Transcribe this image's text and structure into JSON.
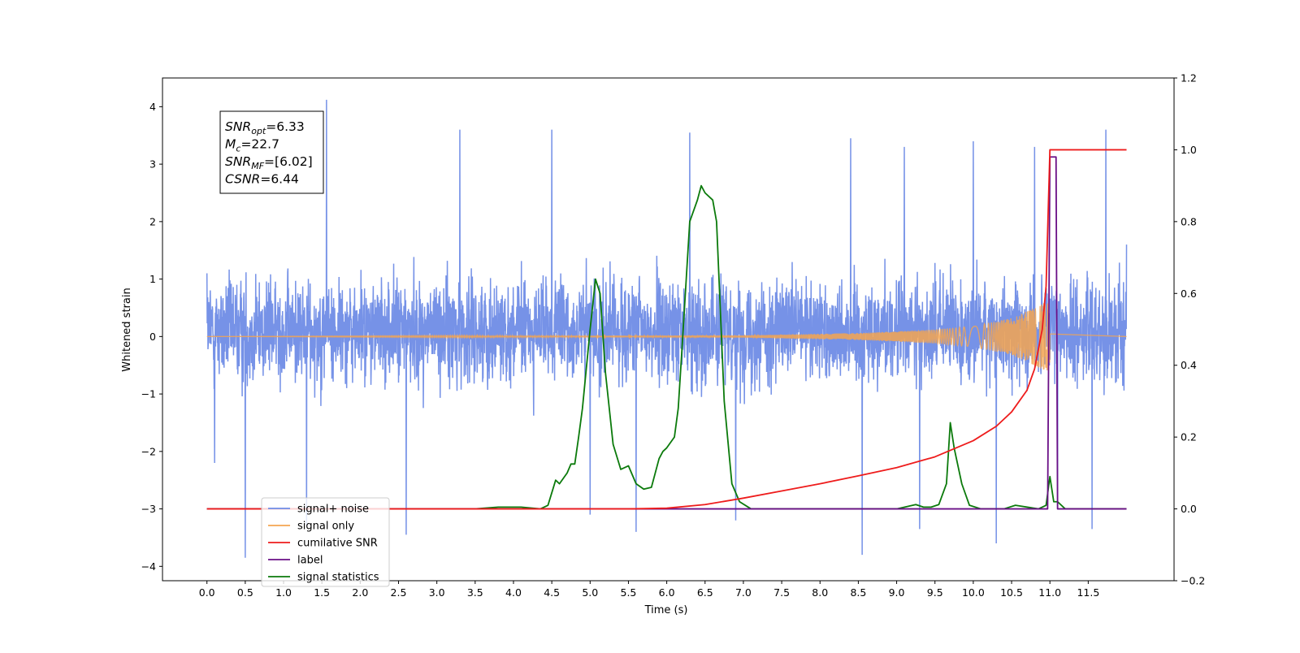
{
  "chart_data": {
    "type": "line",
    "xlabel": "Time (s)",
    "ylabel": "Whitened strain",
    "xlim": [
      -0.58,
      12.62
    ],
    "ylim": [
      -4.25,
      4.5
    ],
    "y2lim": [
      -0.2,
      1.2
    ],
    "x_ticks": [
      0.0,
      0.5,
      1.0,
      1.5,
      2.0,
      2.5,
      3.0,
      3.5,
      4.0,
      4.5,
      5.0,
      5.5,
      6.0,
      6.5,
      7.0,
      7.5,
      8.0,
      8.5,
      9.0,
      9.5,
      10.0,
      10.5,
      11.0,
      11.5
    ],
    "x_tick_labels": [
      "0.0",
      "0.5",
      "1.0",
      "1.5",
      "2.0",
      "2.5",
      "3.0",
      "3.5",
      "4.0",
      "4.5",
      "5.0",
      "5.5",
      "6.0",
      "6.5",
      "7.0",
      "7.5",
      "8.0",
      "8.5",
      "9.0",
      "9.5",
      "10.0",
      "10.5",
      "11.0",
      "11.5"
    ],
    "y_ticks": [
      -4,
      -3,
      -2,
      -1,
      0,
      1,
      2,
      3,
      4
    ],
    "y_tick_labels": [
      "−4",
      "−3",
      "−2",
      "−1",
      "0",
      "1",
      "2",
      "3",
      "4"
    ],
    "y2_ticks": [
      -0.2,
      0.0,
      0.2,
      0.4,
      0.6,
      0.8,
      1.0,
      1.2
    ],
    "y2_tick_labels": [
      "−0.2",
      "0.0",
      "0.2",
      "0.4",
      "0.6",
      "0.8",
      "1.0",
      "1.2"
    ],
    "legend_placement": "lower-left",
    "grid": false,
    "annotation": {
      "lines": [
        {
          "sym": "SNR",
          "sub": "opt",
          "value": "=6.33"
        },
        {
          "sym": "M",
          "sub": "c",
          "value": "=22.7"
        },
        {
          "sym": "SNR",
          "sub": "MF",
          "value": "=[6.02]"
        },
        {
          "sym": "CSNR",
          "sub": "",
          "value": "=6.44"
        }
      ]
    },
    "series": [
      {
        "name": "signal+ noise",
        "axis": "left",
        "color": "#6f8ce6",
        "kind": "noise",
        "x_range": [
          0.0,
          12.0
        ],
        "typical_range": [
          -1.6,
          1.8
        ],
        "extreme_range": [
          -3.85,
          4.12
        ],
        "points": [
          [
            0.0,
            1.1
          ],
          [
            0.1,
            -2.2
          ],
          [
            0.5,
            -3.85
          ],
          [
            1.56,
            4.12
          ],
          [
            1.3,
            -3.3
          ],
          [
            2.6,
            -3.45
          ],
          [
            3.3,
            3.6
          ],
          [
            4.5,
            3.6
          ],
          [
            5.0,
            -3.1
          ],
          [
            5.6,
            -3.4
          ],
          [
            6.3,
            3.55
          ],
          [
            6.9,
            -3.2
          ],
          [
            8.4,
            3.45
          ],
          [
            8.55,
            -3.8
          ],
          [
            9.1,
            3.3
          ],
          [
            9.3,
            -3.35
          ],
          [
            10.0,
            3.4
          ],
          [
            10.3,
            -3.6
          ],
          [
            10.8,
            3.3
          ],
          [
            11.1,
            -3.0
          ],
          [
            11.55,
            -3.35
          ],
          [
            11.73,
            3.6
          ],
          [
            12.0,
            1.6
          ]
        ]
      },
      {
        "name": "signal only",
        "axis": "left",
        "color": "#f5a550",
        "kind": "chirp",
        "x_range": [
          0.0,
          11.0
        ],
        "envelope": [
          [
            0.0,
            0.0
          ],
          [
            7.0,
            0.02
          ],
          [
            8.5,
            0.06
          ],
          [
            9.5,
            0.12
          ],
          [
            10.0,
            0.18
          ],
          [
            10.5,
            0.32
          ],
          [
            10.8,
            0.5
          ],
          [
            10.95,
            0.6
          ],
          [
            11.0,
            0.6
          ]
        ]
      },
      {
        "name": "cumilative SNR",
        "axis": "right",
        "color": "#ee1c1c",
        "x": [
          0.0,
          5.0,
          5.5,
          6.0,
          6.5,
          7.0,
          7.5,
          8.0,
          8.5,
          9.0,
          9.5,
          10.0,
          10.3,
          10.5,
          10.7,
          10.8,
          10.9,
          10.95,
          11.0,
          11.05,
          12.0
        ],
        "values": [
          0.0,
          0.0,
          0.0,
          0.002,
          0.012,
          0.03,
          0.05,
          0.07,
          0.092,
          0.115,
          0.145,
          0.19,
          0.23,
          0.27,
          0.33,
          0.39,
          0.5,
          0.62,
          1.0,
          1.0,
          1.0
        ]
      },
      {
        "name": "label",
        "axis": "right",
        "color": "#6a0f86",
        "x": [
          0.0,
          10.97,
          11.0,
          11.08,
          11.1,
          12.0
        ],
        "values": [
          0.0,
          0.0,
          0.98,
          0.98,
          0.0,
          0.0
        ]
      },
      {
        "name": "signal statistics",
        "axis": "right",
        "color": "#0b7a0b",
        "x": [
          0.0,
          3.5,
          3.8,
          4.1,
          4.35,
          4.45,
          4.5,
          4.55,
          4.6,
          4.65,
          4.7,
          4.75,
          4.8,
          4.85,
          4.9,
          5.0,
          5.07,
          5.13,
          5.2,
          5.3,
          5.4,
          5.5,
          5.6,
          5.7,
          5.8,
          5.9,
          5.95,
          6.0,
          6.1,
          6.15,
          6.2,
          6.3,
          6.4,
          6.45,
          6.5,
          6.6,
          6.65,
          6.75,
          6.85,
          6.95,
          7.1,
          9.0,
          9.25,
          9.35,
          9.45,
          9.55,
          9.65,
          9.7,
          9.75,
          9.85,
          9.95,
          10.1,
          10.4,
          10.55,
          10.85,
          10.95,
          11.0,
          11.05,
          11.1,
          11.2,
          12.0
        ],
        "values": [
          0.0,
          0.0,
          0.005,
          0.005,
          0.0,
          0.01,
          0.045,
          0.08,
          0.07,
          0.085,
          0.1,
          0.125,
          0.125,
          0.2,
          0.28,
          0.5,
          0.64,
          0.6,
          0.38,
          0.18,
          0.11,
          0.12,
          0.07,
          0.055,
          0.06,
          0.14,
          0.16,
          0.17,
          0.2,
          0.28,
          0.45,
          0.8,
          0.86,
          0.9,
          0.88,
          0.86,
          0.8,
          0.3,
          0.07,
          0.02,
          0.0,
          0.0,
          0.012,
          0.005,
          0.005,
          0.012,
          0.07,
          0.24,
          0.17,
          0.07,
          0.01,
          0.0,
          0.0,
          0.01,
          0.0,
          0.01,
          0.09,
          0.02,
          0.02,
          0.0,
          0.0
        ]
      }
    ],
    "legend": [
      "signal+ noise",
      "signal only",
      "cumilative SNR",
      "label",
      "signal statistics"
    ]
  }
}
